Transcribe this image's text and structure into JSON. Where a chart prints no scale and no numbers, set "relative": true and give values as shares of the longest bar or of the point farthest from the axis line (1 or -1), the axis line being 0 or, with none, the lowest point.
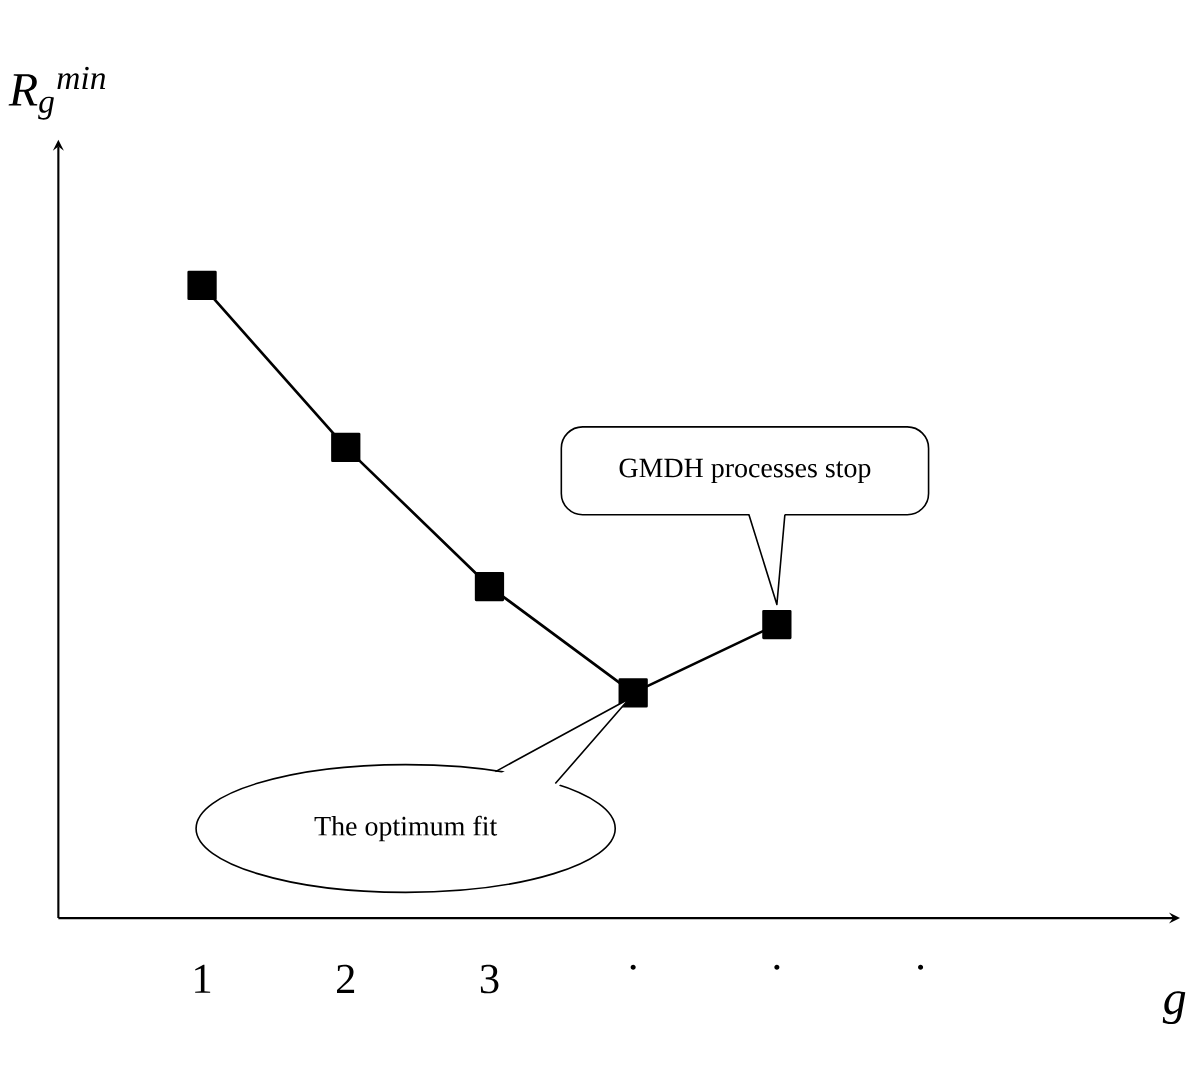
{
  "chart_data": {
    "type": "line",
    "relative": true,
    "categories": [
      "1",
      "2",
      "3",
      ".",
      ".",
      "."
    ],
    "values": [
      1,
      0.744,
      0.524,
      0.356,
      0.464,
      null
    ],
    "color": "#000000",
    "marker": "square",
    "line_style": "solid",
    "xlabel": "g",
    "ylabel": "R$_{g}$$^{min}$",
    "annotations": [
      "GMDH processes stop",
      "The optimum fit"
    ]
  }
}
